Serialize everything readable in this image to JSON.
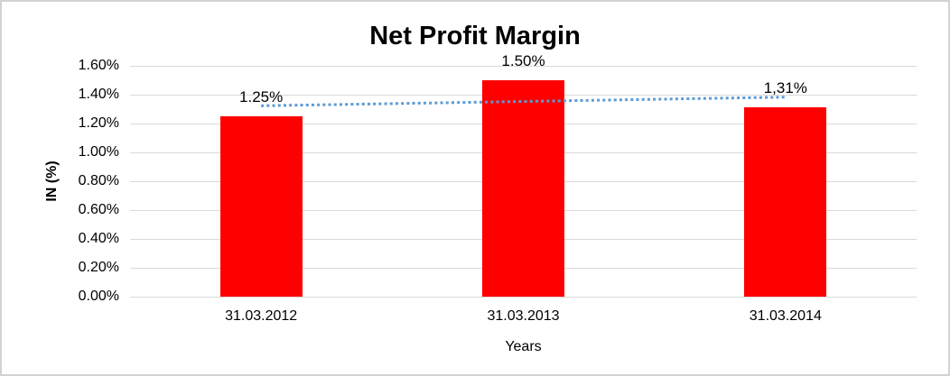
{
  "chart_data": {
    "type": "bar",
    "title": "Net Profit Margin",
    "xlabel": "Years",
    "ylabel": "IN (%)",
    "categories": [
      "31.03.2012",
      "31.03.2013",
      "31.03.2014"
    ],
    "values": [
      1.25,
      1.5,
      1.31
    ],
    "data_labels": [
      "1.25%",
      "1.50%",
      "1,31%"
    ],
    "y_ticks": [
      "0.00%",
      "0.20%",
      "0.40%",
      "0.60%",
      "0.80%",
      "1.00%",
      "1.20%",
      "1.40%",
      "1.60%"
    ],
    "ylim": [
      0,
      1.6
    ],
    "grid": true,
    "legend": "none",
    "bar_color": "#ff0000",
    "trendline": {
      "type": "linear",
      "style": "dotted",
      "color": "#5b9bd5",
      "start_value": 1.323,
      "end_value": 1.383
    }
  },
  "colors": {
    "gridline": "#d9d9d9",
    "frame_border": "#d3d3d3",
    "text": "#000000"
  }
}
